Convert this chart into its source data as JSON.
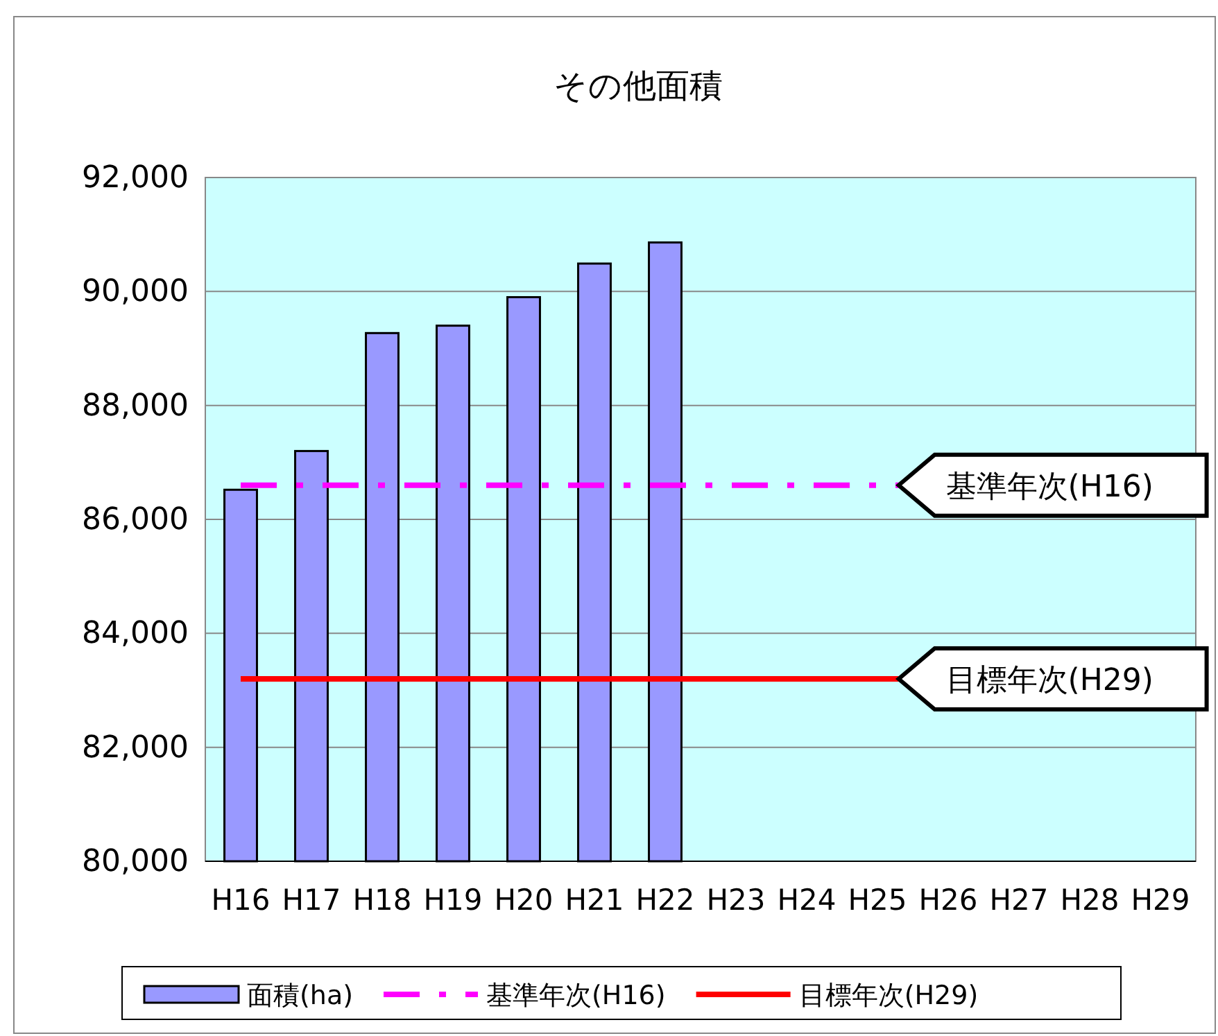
{
  "chart_data": {
    "type": "bar",
    "title": "その他面積",
    "categories": [
      "H16",
      "H17",
      "H18",
      "H19",
      "H20",
      "H21",
      "H22",
      "H23",
      "H24",
      "H25",
      "H26",
      "H27",
      "H28",
      "H29"
    ],
    "series": [
      {
        "name": "面積(ha)",
        "color": "#9999ff",
        "values": [
          86520,
          87200,
          89270,
          89400,
          89900,
          90490,
          90860,
          null,
          null,
          null,
          null,
          null,
          null,
          null
        ]
      }
    ],
    "ylim": [
      80000,
      92000
    ],
    "yticks": [
      {
        "value": 80000,
        "label": "80,000"
      },
      {
        "value": 82000,
        "label": "82,000"
      },
      {
        "value": 84000,
        "label": "84,000"
      },
      {
        "value": 86000,
        "label": "86,000"
      },
      {
        "value": 88000,
        "label": "88,000"
      },
      {
        "value": 90000,
        "label": "90,000"
      },
      {
        "value": 92000,
        "label": "92,000"
      }
    ],
    "ref_lines": [
      {
        "axis": "y",
        "value": 86600,
        "label": "基準年次(H16)",
        "color": "#ff00ff",
        "line_style": "dashed"
      },
      {
        "axis": "y",
        "value": 83200,
        "label": "目標年次(H29)",
        "color": "#ff0000",
        "line_style": "solid"
      }
    ],
    "grid": "y",
    "legend": "bottom"
  }
}
